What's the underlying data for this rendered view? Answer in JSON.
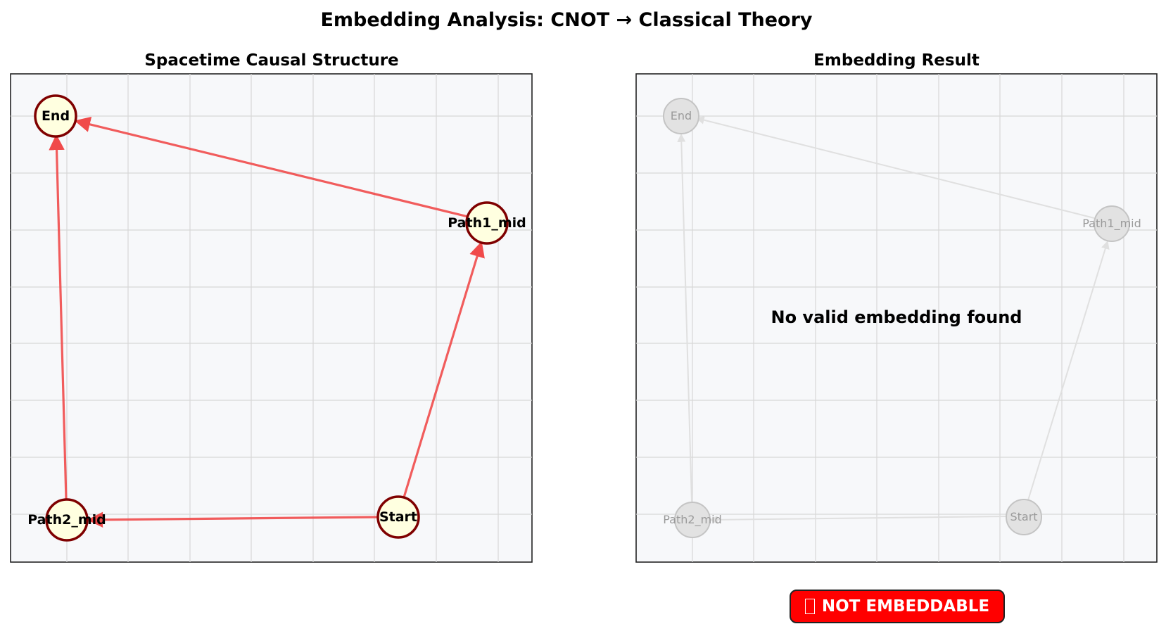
{
  "title": "Embedding Analysis: CNOT → Classical Theory",
  "left_panel": {
    "title": "Spacetime Causal Structure",
    "nodes": [
      {
        "id": "End",
        "label": "End"
      },
      {
        "id": "Path1_mid",
        "label": "Path1_mid"
      },
      {
        "id": "Path2_mid",
        "label": "Path2_mid"
      },
      {
        "id": "Start",
        "label": "Start"
      }
    ],
    "edges": [
      {
        "from": "Start",
        "to": "Path1_mid"
      },
      {
        "from": "Start",
        "to": "Path2_mid"
      },
      {
        "from": "Path1_mid",
        "to": "End"
      },
      {
        "from": "Path2_mid",
        "to": "End"
      }
    ],
    "colors": {
      "edge": "#f04a4a",
      "node_fill": "#ffffe0",
      "node_stroke": "#7f0000"
    }
  },
  "right_panel": {
    "title": "Embedding Result",
    "message": "No valid embedding found",
    "nodes": [
      {
        "id": "End",
        "label": "End"
      },
      {
        "id": "Path1_mid",
        "label": "Path1_mid"
      },
      {
        "id": "Path2_mid",
        "label": "Path2_mid"
      },
      {
        "id": "Start",
        "label": "Start"
      }
    ],
    "colors": {
      "edge": "#e0e0e0",
      "node_fill": "#e2e2e2",
      "node_stroke": "#c4c4c4",
      "label": "#9a9a9a"
    }
  },
  "status_badge": {
    "label": "NOT EMBEDDABLE",
    "icon": "missing-glyph-icon",
    "color": "#ff0000"
  }
}
